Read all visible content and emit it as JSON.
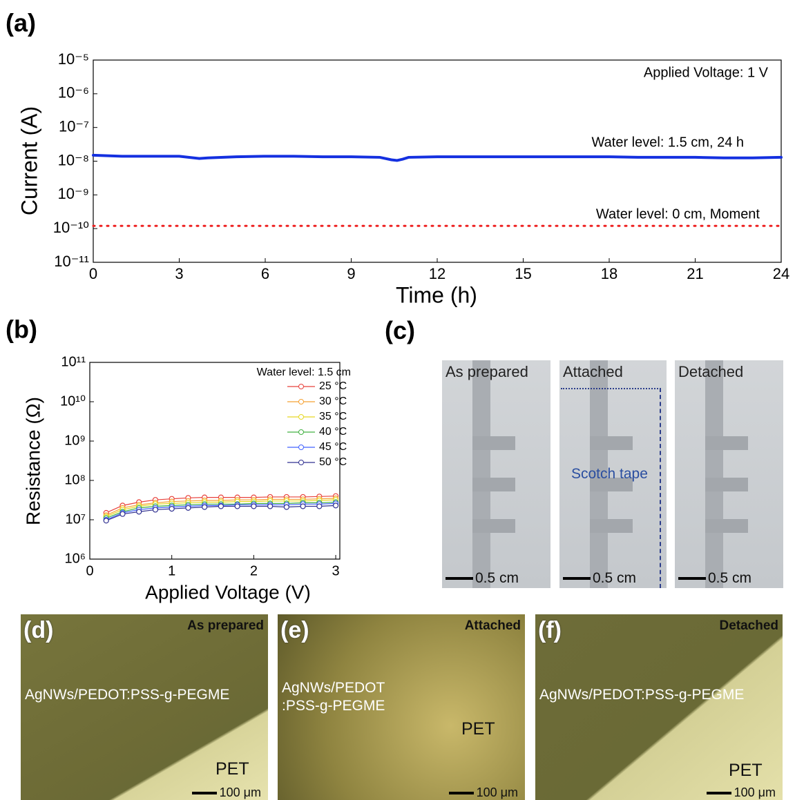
{
  "chart_data": [
    {
      "type": "line",
      "panel_label": "(a)",
      "xlabel": "Time (h)",
      "ylabel": "Current (A)",
      "log_y": true,
      "xlim": [
        0,
        24
      ],
      "xticks": [
        0,
        3,
        6,
        9,
        12,
        15,
        18,
        21,
        24
      ],
      "ylim": [
        1e-11,
        1e-05
      ],
      "yticks": [
        {
          "value": 1e-11,
          "label": "10⁻¹¹"
        },
        {
          "value": 1e-10,
          "label": "10⁻¹⁰"
        },
        {
          "value": 1e-09,
          "label": "10⁻⁹"
        },
        {
          "value": 1e-08,
          "label": "10⁻⁸"
        },
        {
          "value": 1e-07,
          "label": "10⁻⁷"
        },
        {
          "value": 1e-06,
          "label": "10⁻⁶"
        },
        {
          "value": 1e-05,
          "label": "10⁻⁵"
        }
      ],
      "annotations": [
        "Applied Voltage: 1 V",
        "Water level: 1.5 cm, 24 h",
        "Water level: 0 cm, Moment"
      ],
      "series": [
        {
          "color": "#1430e0",
          "linestyle": "solid",
          "x": [
            0,
            1,
            2,
            3,
            3.7,
            4,
            5,
            6,
            7,
            8,
            9,
            10,
            10.4,
            10.6,
            10.8,
            11,
            12,
            13,
            14,
            15,
            16,
            17,
            18,
            19,
            20,
            21,
            22,
            23,
            24
          ],
          "values": [
            1.5e-08,
            1.4e-08,
            1.4e-08,
            1.4e-08,
            1.2e-08,
            1.25e-08,
            1.35e-08,
            1.4e-08,
            1.4e-08,
            1.35e-08,
            1.35e-08,
            1.3e-08,
            1.1e-08,
            1.05e-08,
            1.15e-08,
            1.3e-08,
            1.35e-08,
            1.35e-08,
            1.35e-08,
            1.35e-08,
            1.35e-08,
            1.35e-08,
            1.35e-08,
            1.3e-08,
            1.3e-08,
            1.3e-08,
            1.25e-08,
            1.25e-08,
            1.3e-08
          ]
        },
        {
          "color": "#ee2020",
          "linestyle": "dotted",
          "x": [
            0,
            24
          ],
          "values": [
            1.2e-10,
            1.2e-10
          ]
        }
      ]
    },
    {
      "type": "line",
      "panel_label": "(b)",
      "xlabel": "Applied Voltage (V)",
      "ylabel": "Resistance (Ω)",
      "log_y": true,
      "xlim": [
        0,
        3.05
      ],
      "xticks": [
        0,
        1,
        2,
        3
      ],
      "ylim": [
        1000000.0,
        100000000000.0
      ],
      "yticks": [
        {
          "value": 1000000.0,
          "label": "10⁶"
        },
        {
          "value": 10000000.0,
          "label": "10⁷"
        },
        {
          "value": 100000000.0,
          "label": "10⁸"
        },
        {
          "value": 1000000000.0,
          "label": "10⁹"
        },
        {
          "value": 10000000000.0,
          "label": "10¹⁰"
        },
        {
          "value": 100000000000.0,
          "label": "10¹¹"
        }
      ],
      "legend_title": "Water level: 1.5 cm",
      "legend": "upper right",
      "markers": true,
      "x": [
        0.2,
        0.4,
        0.6,
        0.8,
        1.0,
        1.2,
        1.4,
        1.6,
        1.8,
        2.0,
        2.2,
        2.4,
        2.6,
        2.8,
        3.0
      ],
      "series": [
        {
          "name": "25 °C",
          "color": "#e8403a",
          "values": [
            15000000.0,
            23000000.0,
            28000000.0,
            32000000.0,
            34000000.0,
            36000000.0,
            37000000.0,
            37000000.0,
            37000000.0,
            37000000.0,
            38000000.0,
            38000000.0,
            38000000.0,
            39000000.0,
            40000000.0
          ]
        },
        {
          "name": "30 °C",
          "color": "#f5a030",
          "values": [
            13000000.0,
            20000000.0,
            24000000.0,
            27000000.0,
            29000000.0,
            30000000.0,
            31000000.0,
            31000000.0,
            32000000.0,
            32000000.0,
            33000000.0,
            33000000.0,
            33000000.0,
            34000000.0,
            35000000.0
          ]
        },
        {
          "name": "35 °C",
          "color": "#e6d820",
          "values": [
            12000000.0,
            18000000.0,
            22000000.0,
            25000000.0,
            26000000.0,
            27000000.0,
            28000000.0,
            28000000.0,
            29000000.0,
            29000000.0,
            30000000.0,
            30000000.0,
            30000000.0,
            31000000.0,
            32000000.0
          ]
        },
        {
          "name": "40 °C",
          "color": "#40b040",
          "values": [
            11000000.0,
            16000000.0,
            20000000.0,
            22000000.0,
            23000000.0,
            24000000.0,
            25000000.0,
            25000000.0,
            25000000.0,
            26000000.0,
            26000000.0,
            26000000.0,
            27000000.0,
            27000000.0,
            28000000.0
          ]
        },
        {
          "name": "45 °C",
          "color": "#4060ff",
          "values": [
            10000000.0,
            15000000.0,
            18000000.0,
            20000000.0,
            21000000.0,
            22000000.0,
            23000000.0,
            23000000.0,
            24000000.0,
            24000000.0,
            24000000.0,
            24000000.0,
            25000000.0,
            25000000.0,
            26000000.0
          ]
        },
        {
          "name": "50 °C",
          "color": "#303090",
          "values": [
            9500000.0,
            14000000.0,
            16000000.0,
            18000000.0,
            19000000.0,
            20000000.0,
            21000000.0,
            22000000.0,
            22000000.0,
            22000000.0,
            22000000.0,
            21000000.0,
            22000000.0,
            22000000.0,
            23000000.0
          ]
        }
      ]
    }
  ],
  "photos_c": {
    "panel_label": "(c)",
    "scale": "0.5 cm",
    "titles": [
      "As prepared",
      "Attached",
      "Detached"
    ],
    "tape": "Scotch tape"
  },
  "micrographs": [
    {
      "panel_label": "(d)",
      "title": "As prepared",
      "lines": [
        "AgNWs/PEDOT:PSS-g-PEGME"
      ],
      "substrate": "PET",
      "scale": "100 μm"
    },
    {
      "panel_label": "(e)",
      "title": "Attached",
      "lines": [
        "AgNWs/PEDOT",
        ":PSS-g-PEGME"
      ],
      "substrate": "PET",
      "scale": "100 μm"
    },
    {
      "panel_label": "(f)",
      "title": "Detached",
      "lines": [
        "AgNWs/PEDOT:PSS-g-PEGME"
      ],
      "substrate": "PET",
      "scale": "100 μm"
    }
  ]
}
